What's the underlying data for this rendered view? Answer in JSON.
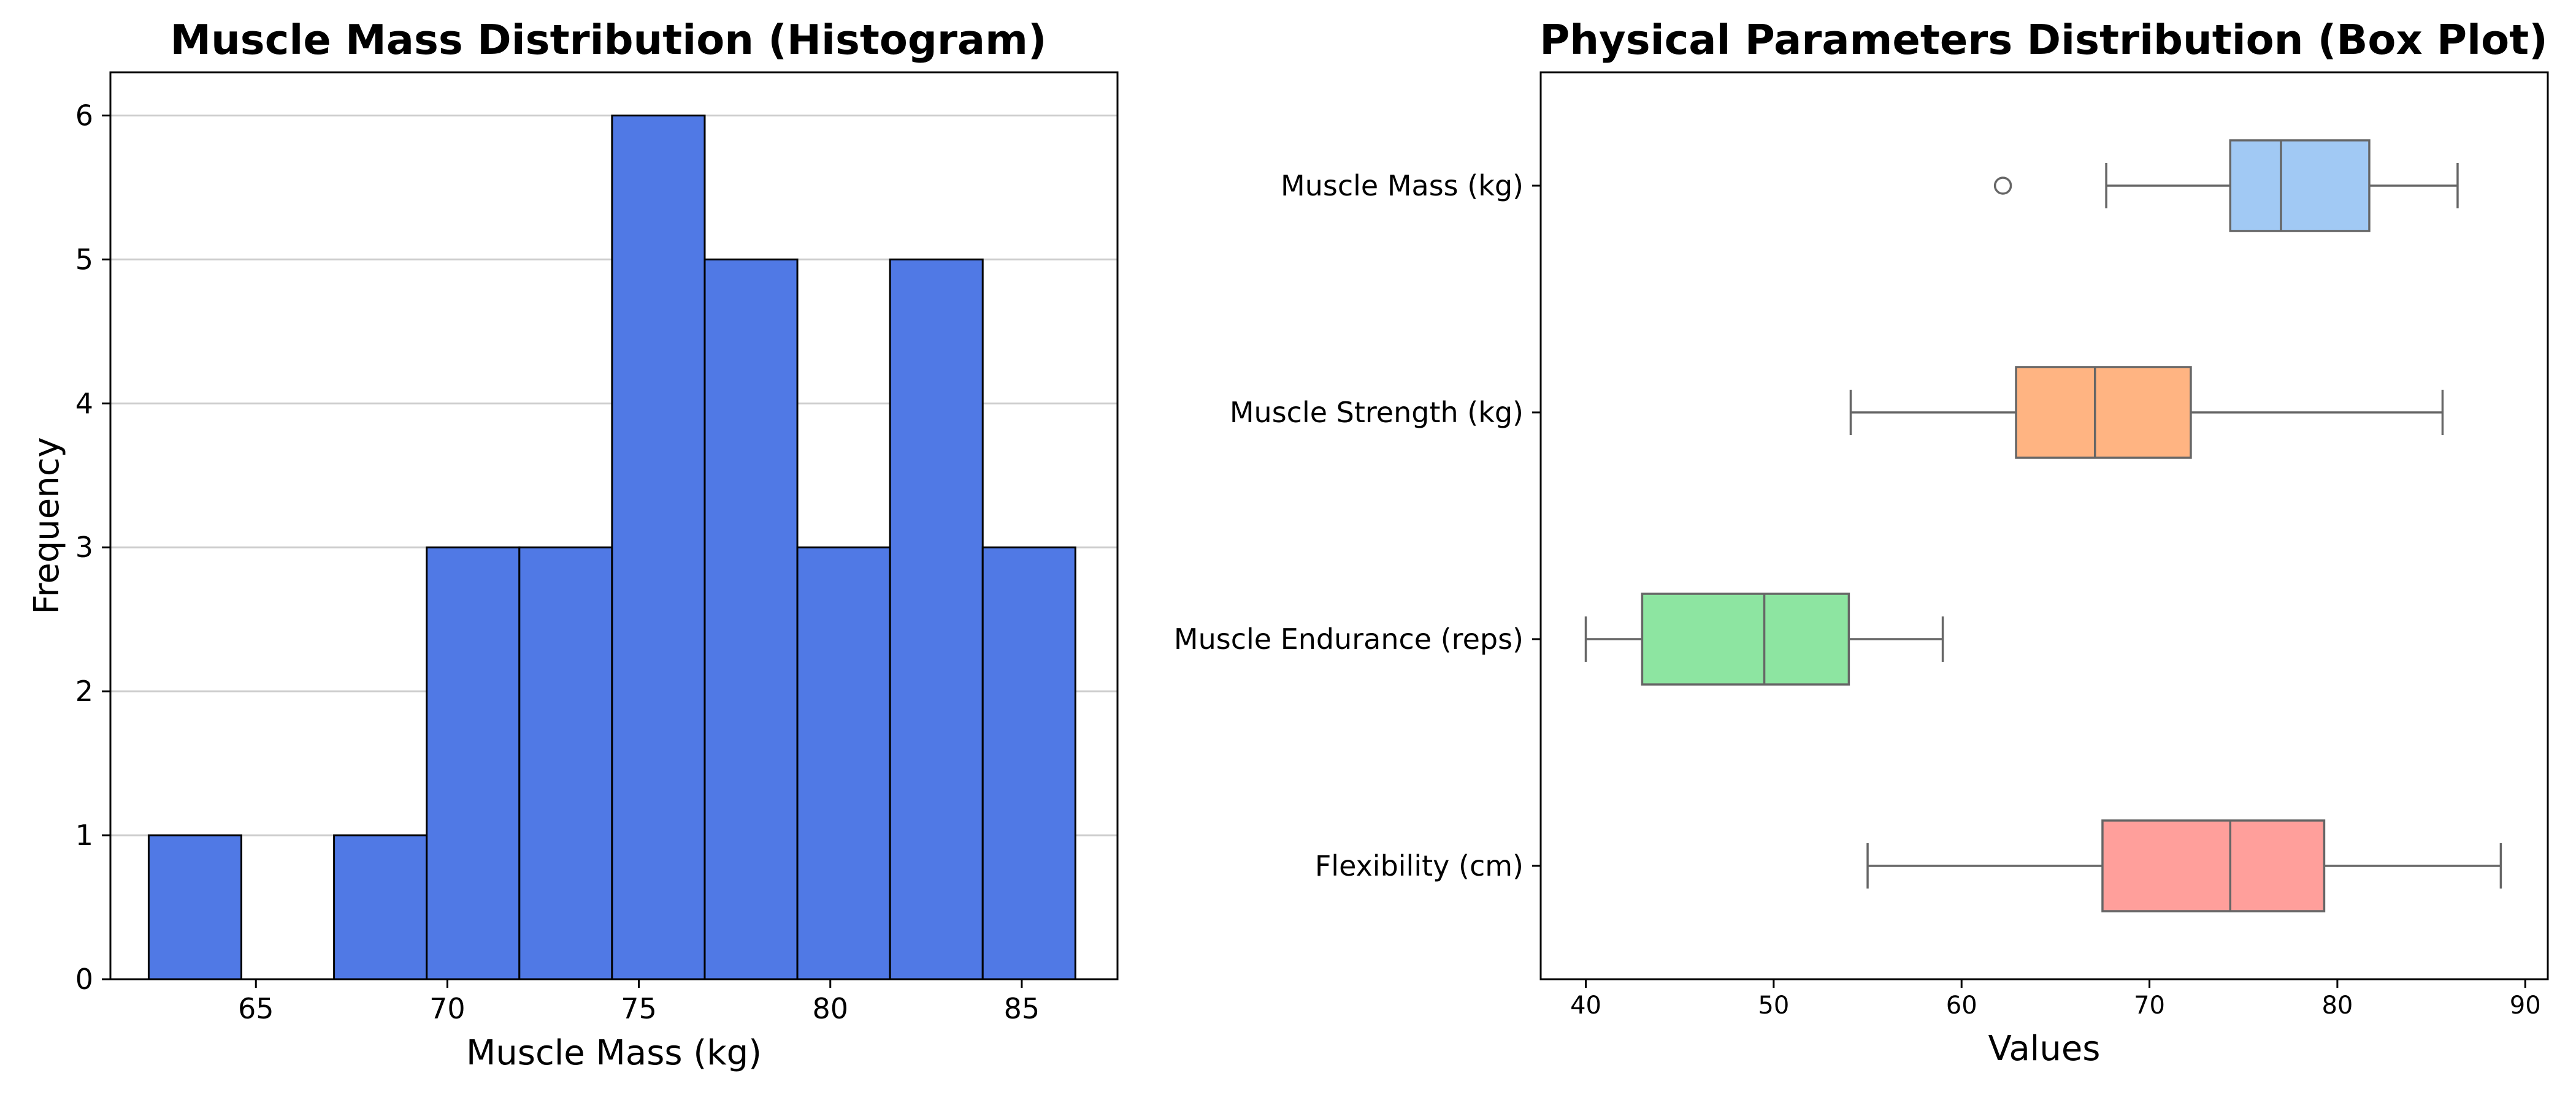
{
  "chart_data": [
    {
      "type": "bar",
      "subtype": "histogram",
      "title": "Muscle Mass Distribution (Histogram)",
      "xlabel": "Muscle Mass (kg)",
      "ylabel": "Frequency",
      "xlim": [
        61.2,
        87.5
      ],
      "ylim": [
        0,
        6.3
      ],
      "xticks": [
        65,
        70,
        75,
        80,
        85
      ],
      "yticks": [
        0,
        1,
        2,
        3,
        4,
        5,
        6
      ],
      "bin_edges": [
        62.2,
        64.62,
        67.04,
        69.46,
        71.88,
        74.3,
        76.72,
        79.14,
        81.56,
        83.98,
        86.4
      ],
      "counts": [
        1,
        0,
        1,
        3,
        3,
        6,
        5,
        3,
        5,
        3
      ],
      "bar_color": "#5079e5",
      "edge_color": "#000000",
      "grid": "y"
    },
    {
      "type": "box",
      "orientation": "horizontal",
      "title": "Physical Parameters Distribution (Box Plot)",
      "xlabel": "Values",
      "xlim": [
        37.6,
        91.2
      ],
      "xticks": [
        40,
        50,
        60,
        70,
        80,
        90
      ],
      "series": [
        {
          "name": "Muscle Mass (kg)",
          "whisker_low": 67.7,
          "q1": 74.3,
          "median": 77.0,
          "q3": 81.7,
          "whisker_high": 86.4,
          "outliers": [
            62.2
          ],
          "color": "#a1c9f4"
        },
        {
          "name": "Muscle Strength (kg)",
          "whisker_low": 54.1,
          "q1": 62.9,
          "median": 67.1,
          "q3": 72.2,
          "whisker_high": 85.6,
          "outliers": [],
          "color": "#ffb482"
        },
        {
          "name": "Muscle Endurance (reps)",
          "whisker_low": 40.0,
          "q1": 43.0,
          "median": 49.5,
          "q3": 54.0,
          "whisker_high": 59.0,
          "outliers": [],
          "color": "#8de5a1"
        },
        {
          "name": "Flexibility (cm)",
          "whisker_low": 55.0,
          "q1": 67.5,
          "median": 74.3,
          "q3": 79.3,
          "whisker_high": 88.7,
          "outliers": [],
          "color": "#ff9f9b"
        }
      ],
      "line_color": "#666666"
    }
  ]
}
